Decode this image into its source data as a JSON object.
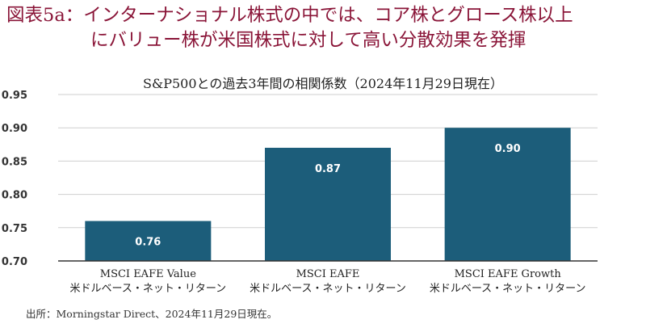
{
  "figure": {
    "title_line1": "図表5a：インターナショナル株式の中では、コア株とグロース株以上",
    "title_line2": "にバリュー株が米国株式に対して高い分散効果を発揮",
    "source": "出所：Morningstar Direct、2024年11月29日現在。"
  },
  "chart_data": {
    "type": "bar",
    "title": "S&P500との過去3年間の相関係数（2024年11月29日現在）",
    "categories": [
      [
        "MSCI EAFE Value",
        "米ドルベース・ネット・リターン"
      ],
      [
        "MSCI EAFE",
        "米ドルベース・ネット・リターン"
      ],
      [
        "MSCI EAFE Growth",
        "米ドルベース・ネット・リターン"
      ]
    ],
    "values": [
      0.76,
      0.87,
      0.9
    ],
    "value_labels": [
      "0.76",
      "0.87",
      "0.90"
    ],
    "yticks": [
      "0.70",
      "0.75",
      "0.80",
      "0.85",
      "0.90",
      "0.95"
    ],
    "ylim": [
      0.7,
      0.95
    ],
    "xlabel": "",
    "ylabel": "",
    "grid": true,
    "colors": {
      "bar": "#1c5d7a",
      "grid": "#cfcfcf",
      "axis": "#333333",
      "title": "#8a1538"
    }
  }
}
